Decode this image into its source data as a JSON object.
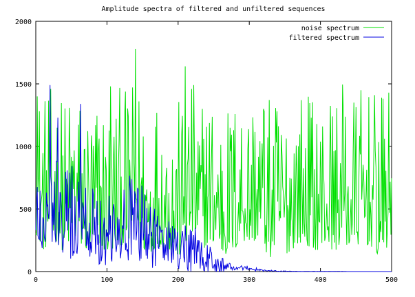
{
  "chart_data": {
    "type": "line",
    "title": "Amplitude spectra of filtered and unfiltered sequences",
    "xlabel": "",
    "ylabel": "",
    "xlim": [
      0,
      500
    ],
    "ylim": [
      0,
      2000
    ],
    "xticks": [
      0,
      100,
      200,
      300,
      400,
      500
    ],
    "yticks": [
      0,
      500,
      1000,
      1500,
      2000
    ],
    "xtick_labels": [
      "0",
      "100",
      "200",
      "300",
      "400",
      "500"
    ],
    "ytick_labels": [
      "0",
      "500",
      "1000",
      "1500",
      "2000"
    ],
    "grid": false,
    "legend_position": "top-right",
    "series": [
      {
        "name": "noise spectrum",
        "color": "#00e000",
        "x": [
          0,
          10,
          20,
          30,
          40,
          50,
          60,
          70,
          80,
          90,
          100,
          110,
          120,
          130,
          140,
          150,
          160,
          170,
          180,
          190,
          200,
          210,
          220,
          230,
          240,
          250,
          260,
          270,
          280,
          290,
          300,
          310,
          320,
          330,
          340,
          350,
          360,
          370,
          380,
          390,
          400,
          410,
          420,
          430,
          440,
          450,
          460,
          470,
          480,
          490,
          500
        ],
        "values": [
          650,
          520,
          560,
          580,
          490,
          600,
          560,
          520,
          470,
          560,
          480,
          530,
          560,
          560,
          650,
          520,
          470,
          560,
          520,
          500,
          460,
          520,
          640,
          480,
          560,
          560,
          490,
          480,
          520,
          600,
          560,
          600,
          520,
          460,
          540,
          480,
          520,
          580,
          560,
          520,
          520,
          560,
          500,
          600,
          520,
          560,
          560,
          560,
          480,
          520,
          560
        ],
        "peaks": [
          {
            "x": 2,
            "y": 1400
          },
          {
            "x": 105,
            "y": 1480
          },
          {
            "x": 140,
            "y": 1780
          },
          {
            "x": 210,
            "y": 1640
          },
          {
            "x": 320,
            "y": 1300
          },
          {
            "x": 432,
            "y": 1300
          }
        ]
      },
      {
        "name": "filtered spectrum",
        "color": "#0000e0",
        "x": [
          0,
          10,
          20,
          30,
          40,
          50,
          60,
          70,
          80,
          90,
          100,
          110,
          120,
          130,
          140,
          150,
          160,
          170,
          180,
          190,
          200,
          210,
          220,
          230,
          240,
          250,
          260,
          270,
          280,
          290,
          300,
          310,
          320,
          330,
          340,
          350,
          360,
          370,
          380,
          390,
          400,
          410,
          420,
          430,
          440,
          450,
          460,
          470,
          480,
          490,
          500
        ],
        "values": [
          520,
          560,
          600,
          560,
          520,
          500,
          520,
          440,
          430,
          420,
          400,
          460,
          460,
          460,
          470,
          400,
          380,
          330,
          300,
          260,
          230,
          220,
          180,
          150,
          120,
          90,
          60,
          40,
          30,
          25,
          20,
          15,
          10,
          6,
          4,
          3,
          2,
          1,
          1,
          1,
          1,
          1,
          1,
          1,
          0,
          0,
          0,
          0,
          0,
          0,
          0
        ],
        "peaks": [
          {
            "x": 20,
            "y": 1490
          },
          {
            "x": 31,
            "y": 1230
          },
          {
            "x": 63,
            "y": 1340
          }
        ]
      }
    ]
  }
}
